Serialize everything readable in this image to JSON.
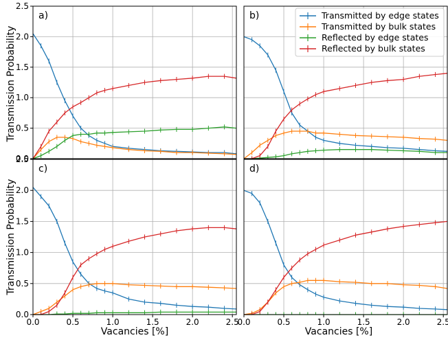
{
  "chart_data": {
    "type": "line",
    "ylabel": "Transmission Probability",
    "xlabel": "Vacancies [%]",
    "xlim": [
      0,
      2.55
    ],
    "ylim": [
      0,
      2.5
    ],
    "xticks": [
      "0.0",
      "0.5",
      "1.0",
      "1.5",
      "2.0",
      "2.5"
    ],
    "xtick_values": [
      0,
      0.5,
      1.0,
      1.5,
      2.0,
      2.5
    ],
    "yticks": [
      "0.0",
      "0.5",
      "1.0",
      "1.5",
      "2.0",
      "2.5"
    ],
    "ytick_values": [
      0,
      0.5,
      1.0,
      1.5,
      2.0,
      2.5
    ],
    "grid": true,
    "legend_position": "top-right of panel b",
    "series_names": [
      "Transmitted by edge states",
      "Transmitted by bulk states",
      "Reflected by edge states",
      "Reflected by bulk states"
    ],
    "series_colors": [
      "#1f77b4",
      "#ff7f0e",
      "#2ca02c",
      "#d62728"
    ],
    "x": [
      0,
      0.1,
      0.2,
      0.3,
      0.4,
      0.5,
      0.6,
      0.7,
      0.8,
      0.9,
      1.0,
      1.2,
      1.4,
      1.6,
      1.8,
      2.0,
      2.2,
      2.4,
      2.55
    ],
    "panels": [
      {
        "label": "a)",
        "series": [
          {
            "name": "Transmitted by edge states",
            "values": [
              2.05,
              1.85,
              1.6,
              1.25,
              0.95,
              0.7,
              0.5,
              0.38,
              0.3,
              0.25,
              0.2,
              0.17,
              0.15,
              0.13,
              0.12,
              0.11,
              0.1,
              0.1,
              0.08
            ]
          },
          {
            "name": "Transmitted by bulk states",
            "values": [
              0.0,
              0.15,
              0.28,
              0.35,
              0.35,
              0.33,
              0.28,
              0.25,
              0.22,
              0.2,
              0.18,
              0.15,
              0.13,
              0.12,
              0.1,
              0.1,
              0.09,
              0.08,
              0.07
            ]
          },
          {
            "name": "Reflected by edge states",
            "values": [
              0.0,
              0.05,
              0.12,
              0.2,
              0.3,
              0.38,
              0.4,
              0.4,
              0.42,
              0.42,
              0.43,
              0.44,
              0.45,
              0.47,
              0.48,
              0.48,
              0.5,
              0.52,
              0.5
            ]
          },
          {
            "name": "Reflected by bulk states",
            "values": [
              0.0,
              0.2,
              0.45,
              0.6,
              0.75,
              0.85,
              0.92,
              1.0,
              1.08,
              1.12,
              1.15,
              1.2,
              1.25,
              1.28,
              1.3,
              1.32,
              1.35,
              1.35,
              1.32
            ]
          }
        ]
      },
      {
        "label": "b)",
        "series": [
          {
            "name": "Transmitted by edge states",
            "values": [
              2.0,
              1.95,
              1.85,
              1.7,
              1.45,
              1.1,
              0.75,
              0.55,
              0.45,
              0.35,
              0.3,
              0.25,
              0.22,
              0.2,
              0.18,
              0.17,
              0.15,
              0.13,
              0.12
            ]
          },
          {
            "name": "Transmitted by bulk states",
            "values": [
              0.0,
              0.1,
              0.22,
              0.3,
              0.38,
              0.42,
              0.45,
              0.45,
              0.45,
              0.42,
              0.42,
              0.4,
              0.38,
              0.37,
              0.36,
              0.35,
              0.33,
              0.32,
              0.3
            ]
          },
          {
            "name": "Reflected by edge states",
            "values": [
              0.0,
              0.0,
              0.01,
              0.02,
              0.03,
              0.05,
              0.08,
              0.1,
              0.12,
              0.13,
              0.14,
              0.15,
              0.15,
              0.15,
              0.14,
              0.13,
              0.12,
              0.1,
              0.1
            ]
          },
          {
            "name": "Reflected by bulk states",
            "values": [
              0.0,
              0.0,
              0.05,
              0.2,
              0.45,
              0.65,
              0.8,
              0.9,
              0.98,
              1.05,
              1.1,
              1.15,
              1.2,
              1.25,
              1.28,
              1.3,
              1.35,
              1.38,
              1.4
            ]
          }
        ]
      },
      {
        "label": "c)",
        "series": [
          {
            "name": "Transmitted by edge states",
            "values": [
              2.05,
              1.9,
              1.75,
              1.5,
              1.15,
              0.85,
              0.65,
              0.5,
              0.42,
              0.38,
              0.35,
              0.25,
              0.2,
              0.18,
              0.15,
              0.13,
              0.12,
              0.1,
              0.09
            ]
          },
          {
            "name": "Transmitted by bulk states",
            "values": [
              0.0,
              0.05,
              0.1,
              0.2,
              0.3,
              0.4,
              0.45,
              0.48,
              0.5,
              0.5,
              0.5,
              0.48,
              0.47,
              0.46,
              0.45,
              0.45,
              0.44,
              0.43,
              0.42
            ]
          },
          {
            "name": "Reflected by edge states",
            "values": [
              0.0,
              0.0,
              0.0,
              0.01,
              0.01,
              0.02,
              0.02,
              0.02,
              0.03,
              0.03,
              0.03,
              0.03,
              0.03,
              0.04,
              0.04,
              0.04,
              0.04,
              0.04,
              0.04
            ]
          },
          {
            "name": "Reflected by bulk states",
            "values": [
              0.0,
              0.0,
              0.05,
              0.15,
              0.35,
              0.6,
              0.8,
              0.9,
              0.98,
              1.05,
              1.1,
              1.18,
              1.25,
              1.3,
              1.35,
              1.38,
              1.4,
              1.4,
              1.38
            ]
          }
        ]
      },
      {
        "label": "d)",
        "series": [
          {
            "name": "Transmitted by edge states",
            "values": [
              2.0,
              1.95,
              1.8,
              1.5,
              1.15,
              0.8,
              0.6,
              0.48,
              0.4,
              0.33,
              0.28,
              0.22,
              0.18,
              0.15,
              0.13,
              0.12,
              0.1,
              0.09,
              0.08
            ]
          },
          {
            "name": "Transmitted by bulk states",
            "values": [
              0.0,
              0.02,
              0.08,
              0.2,
              0.35,
              0.45,
              0.5,
              0.52,
              0.55,
              0.55,
              0.55,
              0.53,
              0.52,
              0.5,
              0.5,
              0.48,
              0.47,
              0.45,
              0.42
            ]
          },
          {
            "name": "Reflected by edge states",
            "values": [
              0.0,
              0.0,
              0.0,
              0.0,
              0.0,
              0.0,
              0.0,
              0.0,
              0.0,
              0.0,
              0.0,
              0.0,
              0.0,
              0.0,
              0.0,
              0.0,
              0.0,
              0.0,
              0.0
            ]
          },
          {
            "name": "Reflected by bulk states",
            "values": [
              0.0,
              0.0,
              0.05,
              0.2,
              0.4,
              0.6,
              0.75,
              0.88,
              0.98,
              1.05,
              1.12,
              1.2,
              1.28,
              1.33,
              1.38,
              1.42,
              1.45,
              1.48,
              1.5
            ]
          }
        ]
      }
    ]
  }
}
